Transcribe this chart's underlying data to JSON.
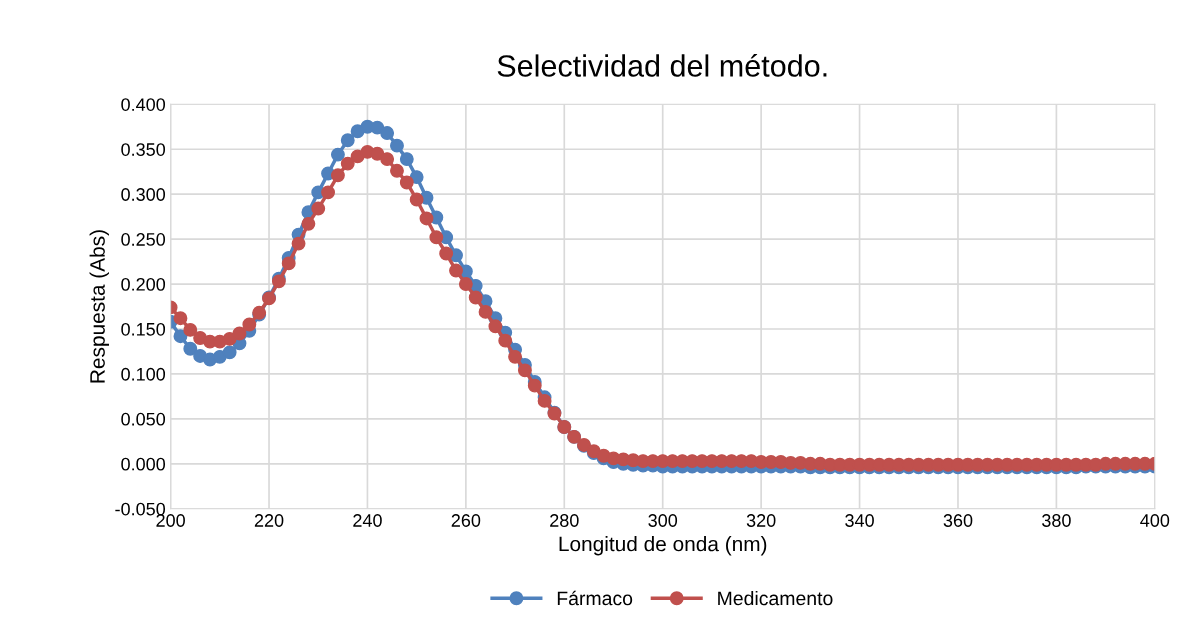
{
  "chart_data": {
    "type": "line",
    "title": "Selectividad del método.",
    "xlabel": "Longitud de onda (nm)",
    "ylabel": "Respuesta (Abs)",
    "x": [
      200,
      202,
      204,
      206,
      208,
      210,
      212,
      214,
      216,
      218,
      220,
      222,
      224,
      226,
      228,
      230,
      232,
      234,
      236,
      238,
      240,
      242,
      244,
      246,
      248,
      250,
      252,
      254,
      256,
      258,
      260,
      262,
      264,
      266,
      268,
      270,
      272,
      274,
      276,
      278,
      280,
      282,
      284,
      286,
      288,
      290,
      292,
      294,
      296,
      298,
      300,
      302,
      304,
      306,
      308,
      310,
      312,
      314,
      316,
      318,
      320,
      322,
      324,
      326,
      328,
      330,
      332,
      334,
      336,
      338,
      340,
      342,
      344,
      346,
      348,
      350,
      352,
      354,
      356,
      358,
      360,
      362,
      364,
      366,
      368,
      370,
      372,
      374,
      376,
      378,
      380,
      382,
      384,
      386,
      388,
      390,
      392,
      394,
      396,
      398,
      400
    ],
    "series": [
      {
        "name": "Fármaco",
        "color": "#4f81bd",
        "values": [
          0.158,
          0.142,
          0.128,
          0.12,
          0.116,
          0.119,
          0.124,
          0.134,
          0.148,
          0.166,
          0.185,
          0.206,
          0.229,
          0.255,
          0.28,
          0.302,
          0.323,
          0.344,
          0.36,
          0.37,
          0.375,
          0.374,
          0.368,
          0.354,
          0.339,
          0.319,
          0.296,
          0.274,
          0.252,
          0.232,
          0.214,
          0.198,
          0.181,
          0.162,
          0.146,
          0.127,
          0.11,
          0.091,
          0.074,
          0.057,
          0.041,
          0.03,
          0.02,
          0.012,
          0.006,
          0.002,
          0.0,
          -0.001,
          -0.002,
          -0.002,
          -0.003,
          -0.003,
          -0.003,
          -0.003,
          -0.003,
          -0.003,
          -0.003,
          -0.003,
          -0.003,
          -0.003,
          -0.003,
          -0.003,
          -0.003,
          -0.003,
          -0.003,
          -0.004,
          -0.004,
          -0.004,
          -0.004,
          -0.004,
          -0.004,
          -0.004,
          -0.004,
          -0.004,
          -0.004,
          -0.004,
          -0.004,
          -0.004,
          -0.004,
          -0.004,
          -0.004,
          -0.004,
          -0.004,
          -0.004,
          -0.004,
          -0.004,
          -0.004,
          -0.004,
          -0.004,
          -0.004,
          -0.004,
          -0.004,
          -0.004,
          -0.003,
          -0.003,
          -0.003,
          -0.003,
          -0.003,
          -0.003,
          -0.003,
          -0.003
        ]
      },
      {
        "name": "Medicamento",
        "color": "#c0504d",
        "values": [
          0.174,
          0.162,
          0.149,
          0.14,
          0.136,
          0.136,
          0.139,
          0.145,
          0.155,
          0.168,
          0.184,
          0.203,
          0.223,
          0.245,
          0.267,
          0.284,
          0.302,
          0.321,
          0.334,
          0.342,
          0.347,
          0.345,
          0.339,
          0.326,
          0.313,
          0.294,
          0.273,
          0.252,
          0.234,
          0.215,
          0.2,
          0.185,
          0.169,
          0.153,
          0.137,
          0.119,
          0.104,
          0.087,
          0.07,
          0.056,
          0.041,
          0.03,
          0.021,
          0.014,
          0.009,
          0.006,
          0.005,
          0.004,
          0.003,
          0.003,
          0.003,
          0.003,
          0.003,
          0.003,
          0.003,
          0.003,
          0.003,
          0.003,
          0.003,
          0.003,
          0.002,
          0.002,
          0.002,
          0.001,
          0.001,
          0.0,
          0.0,
          -0.001,
          -0.001,
          -0.001,
          -0.001,
          -0.001,
          -0.001,
          -0.001,
          -0.001,
          -0.001,
          -0.001,
          -0.001,
          -0.001,
          -0.001,
          -0.001,
          -0.001,
          -0.001,
          -0.001,
          -0.001,
          -0.001,
          -0.001,
          -0.001,
          -0.001,
          -0.001,
          -0.001,
          -0.001,
          -0.001,
          -0.001,
          -0.001,
          0.0,
          0.0,
          0.0,
          0.0,
          0.0,
          0.0
        ]
      }
    ],
    "xlim": [
      200,
      400
    ],
    "xticks": [
      200,
      220,
      240,
      260,
      280,
      300,
      320,
      340,
      360,
      380,
      400
    ],
    "ylim": [
      -0.05,
      0.4
    ],
    "yticks": [
      {
        "value": -0.05,
        "label": "-0.050"
      },
      {
        "value": 0,
        "label": "0.000"
      },
      {
        "value": 0.05,
        "label": "0.050"
      },
      {
        "value": 0.1,
        "label": "0.100"
      },
      {
        "value": 0.15,
        "label": "0.150"
      },
      {
        "value": 0.2,
        "label": "0.200"
      },
      {
        "value": 0.25,
        "label": "0.250"
      },
      {
        "value": 0.3,
        "label": "0.300"
      },
      {
        "value": 0.35,
        "label": "0.350"
      },
      {
        "value": 0.4,
        "label": "0.400"
      }
    ],
    "grid": true,
    "legend": "bottom",
    "marker": "circle",
    "line_style": "solid"
  }
}
